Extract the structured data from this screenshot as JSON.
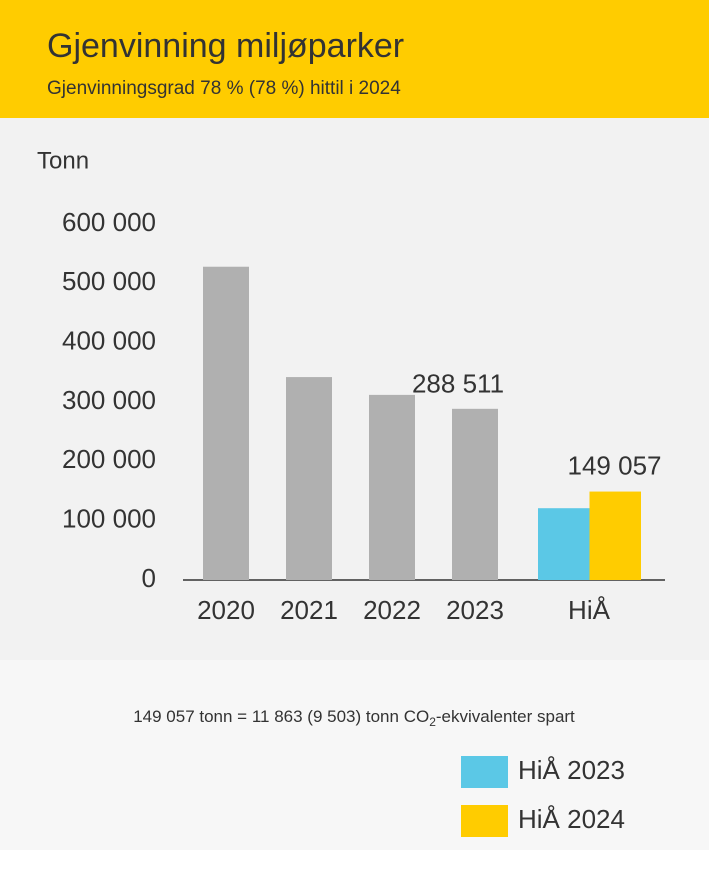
{
  "chart_data": {
    "type": "bar",
    "title": "Gjenvinning miljøparker",
    "subtitle": "Gjenvinningsgrad 78 % (78 %) hittil i 2024",
    "y_label": "Tonn",
    "categories": [
      "2020",
      "2021",
      "2022",
      "2023"
    ],
    "values": [
      528000,
      342000,
      312000,
      288511
    ],
    "value_labels": [
      null,
      null,
      null,
      "288 511"
    ],
    "color": "#b0b0b0",
    "group": {
      "category": "HiÅ",
      "series": [
        {
          "name": "HiÅ 2023",
          "color": "#5bc8e6",
          "values": [
            121000
          ]
        },
        {
          "name": "HiÅ 2024",
          "color": "#ffcc00",
          "values": [
            149057
          ],
          "value_labels": [
            "149 057"
          ]
        }
      ]
    },
    "ylim": [
      0,
      600000
    ],
    "yticks": [
      0,
      {
        "value": 100000,
        "label": "100 000"
      },
      {
        "value": 200000,
        "label": "200 000"
      },
      {
        "value": 300000,
        "label": "300 000"
      },
      {
        "value": 400000,
        "label": "400 000"
      },
      {
        "value": 500000,
        "label": "500 000"
      },
      {
        "value": 600000,
        "label": "600 000"
      }
    ],
    "note": {
      "before": "149 057 tonn = 11 863 (9 503) tonn CO",
      "sub": "2",
      "after": "-ekvivalenter spart"
    }
  }
}
